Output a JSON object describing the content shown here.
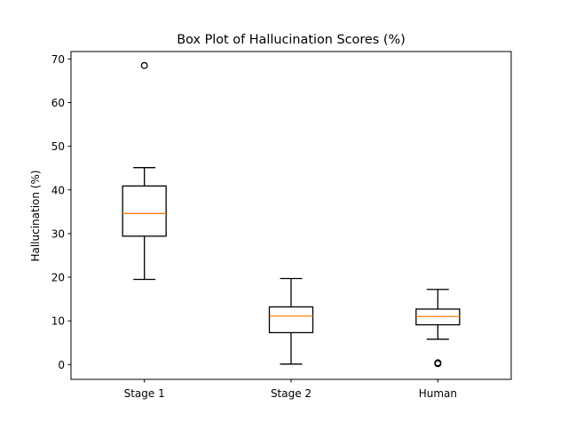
{
  "chart_data": {
    "type": "box",
    "title": "Box Plot of Hallucination Scores (%)",
    "xlabel": "",
    "ylabel": "Hallucination (%)",
    "ylim": [
      -3.4,
      71.7
    ],
    "yticks": [
      0,
      10,
      20,
      30,
      40,
      50,
      60,
      70
    ],
    "grid": false,
    "colors": {
      "box": "#000000",
      "median": "#ff7f0e",
      "flier": "#000000",
      "background": "#ffffff"
    },
    "categories": [
      "Stage 1",
      "Stage 2",
      "Human"
    ],
    "boxes": [
      {
        "label": "Stage 1",
        "whisker_low": 19.5,
        "q1": 29.4,
        "median": 34.6,
        "q3": 40.9,
        "whisker_high": 45.1,
        "outliers": [
          68.5
        ]
      },
      {
        "label": "Stage 2",
        "whisker_low": 0.1,
        "q1": 7.3,
        "median": 11.1,
        "q3": 13.2,
        "whisker_high": 19.7,
        "outliers": []
      },
      {
        "label": "Human",
        "whisker_low": 5.8,
        "q1": 9.1,
        "median": 11.0,
        "q3": 12.7,
        "whisker_high": 17.2,
        "outliers": [
          0.2,
          0.4
        ]
      }
    ]
  }
}
